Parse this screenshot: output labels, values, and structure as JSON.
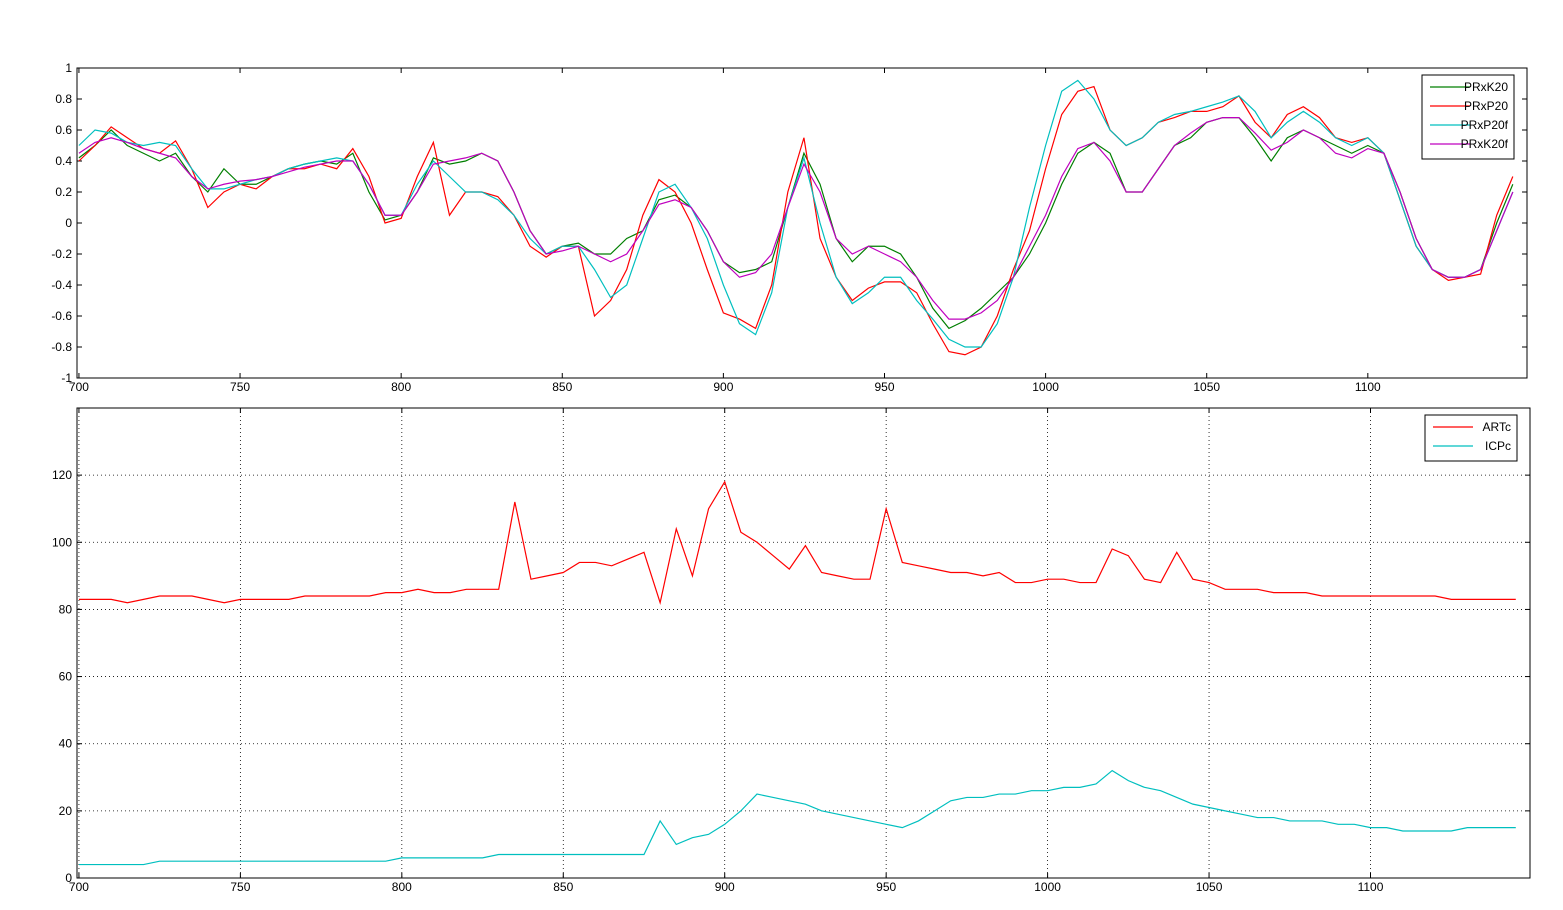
{
  "chart_data": [
    {
      "type": "line",
      "x": [
        700,
        705,
        710,
        715,
        720,
        725,
        730,
        735,
        740,
        745,
        750,
        755,
        760,
        765,
        770,
        775,
        780,
        785,
        790,
        795,
        800,
        805,
        810,
        815,
        820,
        825,
        830,
        835,
        840,
        845,
        850,
        855,
        860,
        865,
        870,
        875,
        880,
        885,
        890,
        895,
        900,
        905,
        910,
        915,
        920,
        925,
        930,
        935,
        940,
        945,
        950,
        955,
        960,
        965,
        970,
        975,
        980,
        985,
        990,
        995,
        1000,
        1005,
        1010,
        1015,
        1020,
        1025,
        1030,
        1035,
        1040,
        1045,
        1050,
        1055,
        1060,
        1065,
        1070,
        1075,
        1080,
        1085,
        1090,
        1095,
        1100,
        1105,
        1110,
        1115,
        1120,
        1125,
        1130,
        1135,
        1140,
        1145
      ],
      "series": [
        {
          "name": "PRxK20",
          "color": "#007f00",
          "values": [
            0.42,
            0.5,
            0.6,
            0.5,
            0.45,
            0.4,
            0.45,
            0.3,
            0.2,
            0.35,
            0.25,
            0.25,
            0.3,
            0.35,
            0.38,
            0.4,
            0.38,
            0.45,
            0.2,
            0.02,
            0.05,
            0.2,
            0.42,
            0.38,
            0.4,
            0.45,
            0.4,
            0.2,
            -0.05,
            -0.2,
            -0.15,
            -0.13,
            -0.2,
            -0.2,
            -0.1,
            -0.05,
            0.15,
            0.18,
            0.1,
            -0.05,
            -0.25,
            -0.32,
            -0.3,
            -0.25,
            0.1,
            0.45,
            0.25,
            -0.1,
            -0.25,
            -0.15,
            -0.15,
            -0.2,
            -0.35,
            -0.55,
            -0.68,
            -0.63,
            -0.55,
            -0.45,
            -0.35,
            -0.2,
            0,
            0.25,
            0.45,
            0.52,
            0.45,
            0.2,
            0.2,
            0.35,
            0.5,
            0.55,
            0.65,
            0.68,
            0.68,
            0.55,
            0.4,
            0.55,
            0.6,
            0.55,
            0.5,
            0.45,
            0.5,
            0.45,
            0.2,
            -0.1,
            -0.3,
            -0.35,
            -0.35,
            -0.3,
            0,
            0.25
          ]
        },
        {
          "name": "PRxP20",
          "color": "#ff0000",
          "values": [
            0.4,
            0.5,
            0.62,
            0.55,
            0.48,
            0.45,
            0.53,
            0.35,
            0.1,
            0.2,
            0.25,
            0.22,
            0.3,
            0.35,
            0.35,
            0.38,
            0.35,
            0.48,
            0.3,
            0,
            0.03,
            0.3,
            0.52,
            0.05,
            0.2,
            0.2,
            0.17,
            0.05,
            -0.15,
            -0.22,
            -0.15,
            -0.15,
            -0.6,
            -0.5,
            -0.3,
            0.05,
            0.28,
            0.2,
            0,
            -0.3,
            -0.58,
            -0.62,
            -0.68,
            -0.4,
            0.2,
            0.55,
            -0.1,
            -0.35,
            -0.5,
            -0.42,
            -0.38,
            -0.38,
            -0.45,
            -0.65,
            -0.83,
            -0.85,
            -0.8,
            -0.6,
            -0.3,
            -0.05,
            0.35,
            0.7,
            0.85,
            0.88,
            0.6,
            0.5,
            0.55,
            0.65,
            0.68,
            0.72,
            0.72,
            0.75,
            0.82,
            0.65,
            0.55,
            0.7,
            0.75,
            0.68,
            0.55,
            0.52,
            0.55,
            0.45,
            0.15,
            -0.15,
            -0.3,
            -0.37,
            -0.35,
            -0.33,
            0.05,
            0.3
          ]
        },
        {
          "name": "PRxP20f",
          "color": "#00bfbf",
          "values": [
            0.5,
            0.6,
            0.58,
            0.52,
            0.5,
            0.52,
            0.5,
            0.35,
            0.22,
            0.22,
            0.25,
            0.28,
            0.3,
            0.35,
            0.38,
            0.4,
            0.42,
            0.4,
            0.25,
            0.05,
            0.05,
            0.25,
            0.4,
            0.3,
            0.2,
            0.2,
            0.15,
            0.05,
            -0.1,
            -0.2,
            -0.15,
            -0.15,
            -0.3,
            -0.48,
            -0.4,
            -0.1,
            0.2,
            0.25,
            0.1,
            -0.1,
            -0.4,
            -0.65,
            -0.72,
            -0.45,
            0.1,
            0.42,
            0,
            -0.35,
            -0.52,
            -0.45,
            -0.35,
            -0.35,
            -0.5,
            -0.62,
            -0.75,
            -0.8,
            -0.8,
            -0.65,
            -0.35,
            0.1,
            0.5,
            0.85,
            0.92,
            0.8,
            0.6,
            0.5,
            0.55,
            0.65,
            0.7,
            0.72,
            0.75,
            0.78,
            0.82,
            0.72,
            0.55,
            0.65,
            0.72,
            0.65,
            0.55,
            0.5,
            0.55,
            0.45,
            0.15,
            -0.15,
            -0.3,
            -0.35,
            -0.35,
            -0.3,
            -0.05,
            0.2
          ]
        },
        {
          "name": "PRxK20f",
          "color": "#bf00bf",
          "values": [
            0.45,
            0.52,
            0.55,
            0.52,
            0.48,
            0.45,
            0.42,
            0.3,
            0.22,
            0.25,
            0.27,
            0.28,
            0.3,
            0.33,
            0.36,
            0.38,
            0.4,
            0.4,
            0.25,
            0.05,
            0.05,
            0.2,
            0.38,
            0.4,
            0.42,
            0.45,
            0.4,
            0.2,
            -0.05,
            -0.2,
            -0.18,
            -0.15,
            -0.2,
            -0.25,
            -0.2,
            -0.05,
            0.12,
            0.15,
            0.1,
            -0.05,
            -0.25,
            -0.35,
            -0.32,
            -0.2,
            0.1,
            0.38,
            0.2,
            -0.1,
            -0.2,
            -0.15,
            -0.2,
            -0.25,
            -0.35,
            -0.5,
            -0.62,
            -0.62,
            -0.58,
            -0.5,
            -0.35,
            -0.15,
            0.05,
            0.3,
            0.48,
            0.52,
            0.4,
            0.2,
            0.2,
            0.35,
            0.5,
            0.58,
            0.65,
            0.68,
            0.68,
            0.58,
            0.47,
            0.52,
            0.6,
            0.55,
            0.45,
            0.42,
            0.48,
            0.45,
            0.2,
            -0.1,
            -0.3,
            -0.35,
            -0.35,
            -0.3,
            -0.05,
            0.2
          ]
        }
      ],
      "xlim": [
        699.4,
        1149.4
      ],
      "xticks": [
        700,
        750,
        800,
        850,
        900,
        950,
        1000,
        1050,
        1100
      ],
      "ylim": [
        -1,
        1
      ],
      "yticks": [
        -1,
        -0.8,
        -0.6,
        -0.4,
        -0.2,
        0,
        0.2,
        0.4,
        0.6,
        0.8,
        1
      ],
      "grid": false,
      "legend": "upper right"
    },
    {
      "type": "line",
      "x": [
        700,
        705,
        710,
        715,
        720,
        725,
        730,
        735,
        740,
        745,
        750,
        755,
        760,
        765,
        770,
        775,
        780,
        785,
        790,
        795,
        800,
        805,
        810,
        815,
        820,
        825,
        830,
        835,
        840,
        845,
        850,
        855,
        860,
        865,
        870,
        875,
        880,
        885,
        890,
        895,
        900,
        905,
        910,
        915,
        920,
        925,
        930,
        935,
        940,
        945,
        950,
        955,
        960,
        965,
        970,
        975,
        980,
        985,
        990,
        995,
        1000,
        1005,
        1010,
        1015,
        1020,
        1025,
        1030,
        1035,
        1040,
        1045,
        1050,
        1055,
        1060,
        1065,
        1070,
        1075,
        1080,
        1085,
        1090,
        1095,
        1100,
        1105,
        1110,
        1115,
        1120,
        1125,
        1130,
        1135,
        1140,
        1145
      ],
      "series": [
        {
          "name": "ARTc",
          "color": "#ff0000",
          "values": [
            83,
            83,
            83,
            82,
            83,
            84,
            84,
            84,
            83,
            82,
            83,
            83,
            83,
            83,
            84,
            84,
            84,
            84,
            84,
            85,
            85,
            86,
            85,
            85,
            86,
            86,
            86,
            112,
            89,
            90,
            91,
            94,
            94,
            93,
            95,
            97,
            82,
            104,
            90,
            110,
            118,
            103,
            100,
            96,
            92,
            99,
            91,
            90,
            89,
            89,
            110,
            94,
            93,
            92,
            91,
            91,
            90,
            91,
            88,
            88,
            89,
            89,
            88,
            88,
            98,
            96,
            89,
            88,
            97,
            89,
            88,
            86,
            86,
            86,
            85,
            85,
            85,
            84,
            84,
            84,
            84,
            84,
            84,
            84,
            84,
            83,
            83,
            83,
            83,
            83
          ]
        },
        {
          "name": "ICPc",
          "color": "#00bfbf",
          "values": [
            4,
            4,
            4,
            4,
            4,
            5,
            5,
            5,
            5,
            5,
            5,
            5,
            5,
            5,
            5,
            5,
            5,
            5,
            5,
            5,
            6,
            6,
            6,
            6,
            6,
            6,
            7,
            7,
            7,
            7,
            7,
            7,
            7,
            7,
            7,
            7,
            17,
            10,
            12,
            13,
            16,
            20,
            25,
            24,
            23,
            22,
            20,
            19,
            18,
            17,
            16,
            15,
            17,
            20,
            23,
            24,
            24,
            25,
            25,
            26,
            26,
            27,
            27,
            28,
            32,
            29,
            27,
            26,
            24,
            22,
            21,
            20,
            19,
            18,
            18,
            17,
            17,
            17,
            16,
            16,
            15,
            15,
            14,
            14,
            14,
            14,
            15,
            15,
            15,
            15
          ]
        }
      ],
      "xlim": [
        699.4,
        1149.4
      ],
      "xticks": [
        700,
        750,
        800,
        850,
        900,
        950,
        1000,
        1050,
        1100
      ],
      "ylim": [
        0,
        140
      ],
      "yticks": [
        0,
        20,
        40,
        60,
        80,
        100,
        120
      ],
      "grid": true,
      "legend": "upper right"
    }
  ]
}
